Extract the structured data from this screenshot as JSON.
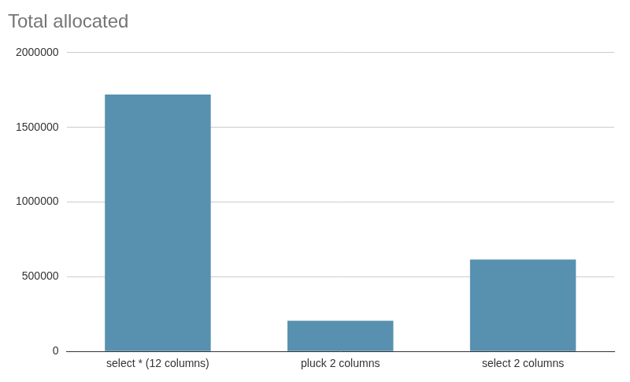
{
  "chart_data": {
    "type": "bar",
    "title": "Total allocated",
    "categories": [
      "select * (12 columns)",
      "pluck 2 columns",
      "select 2 columns"
    ],
    "values": [
      1720000,
      205000,
      615000
    ],
    "color": "#5891af",
    "ylim": [
      0,
      2000000
    ],
    "yticks": [
      0,
      500000,
      1000000,
      1500000,
      2000000
    ],
    "grid": true
  }
}
